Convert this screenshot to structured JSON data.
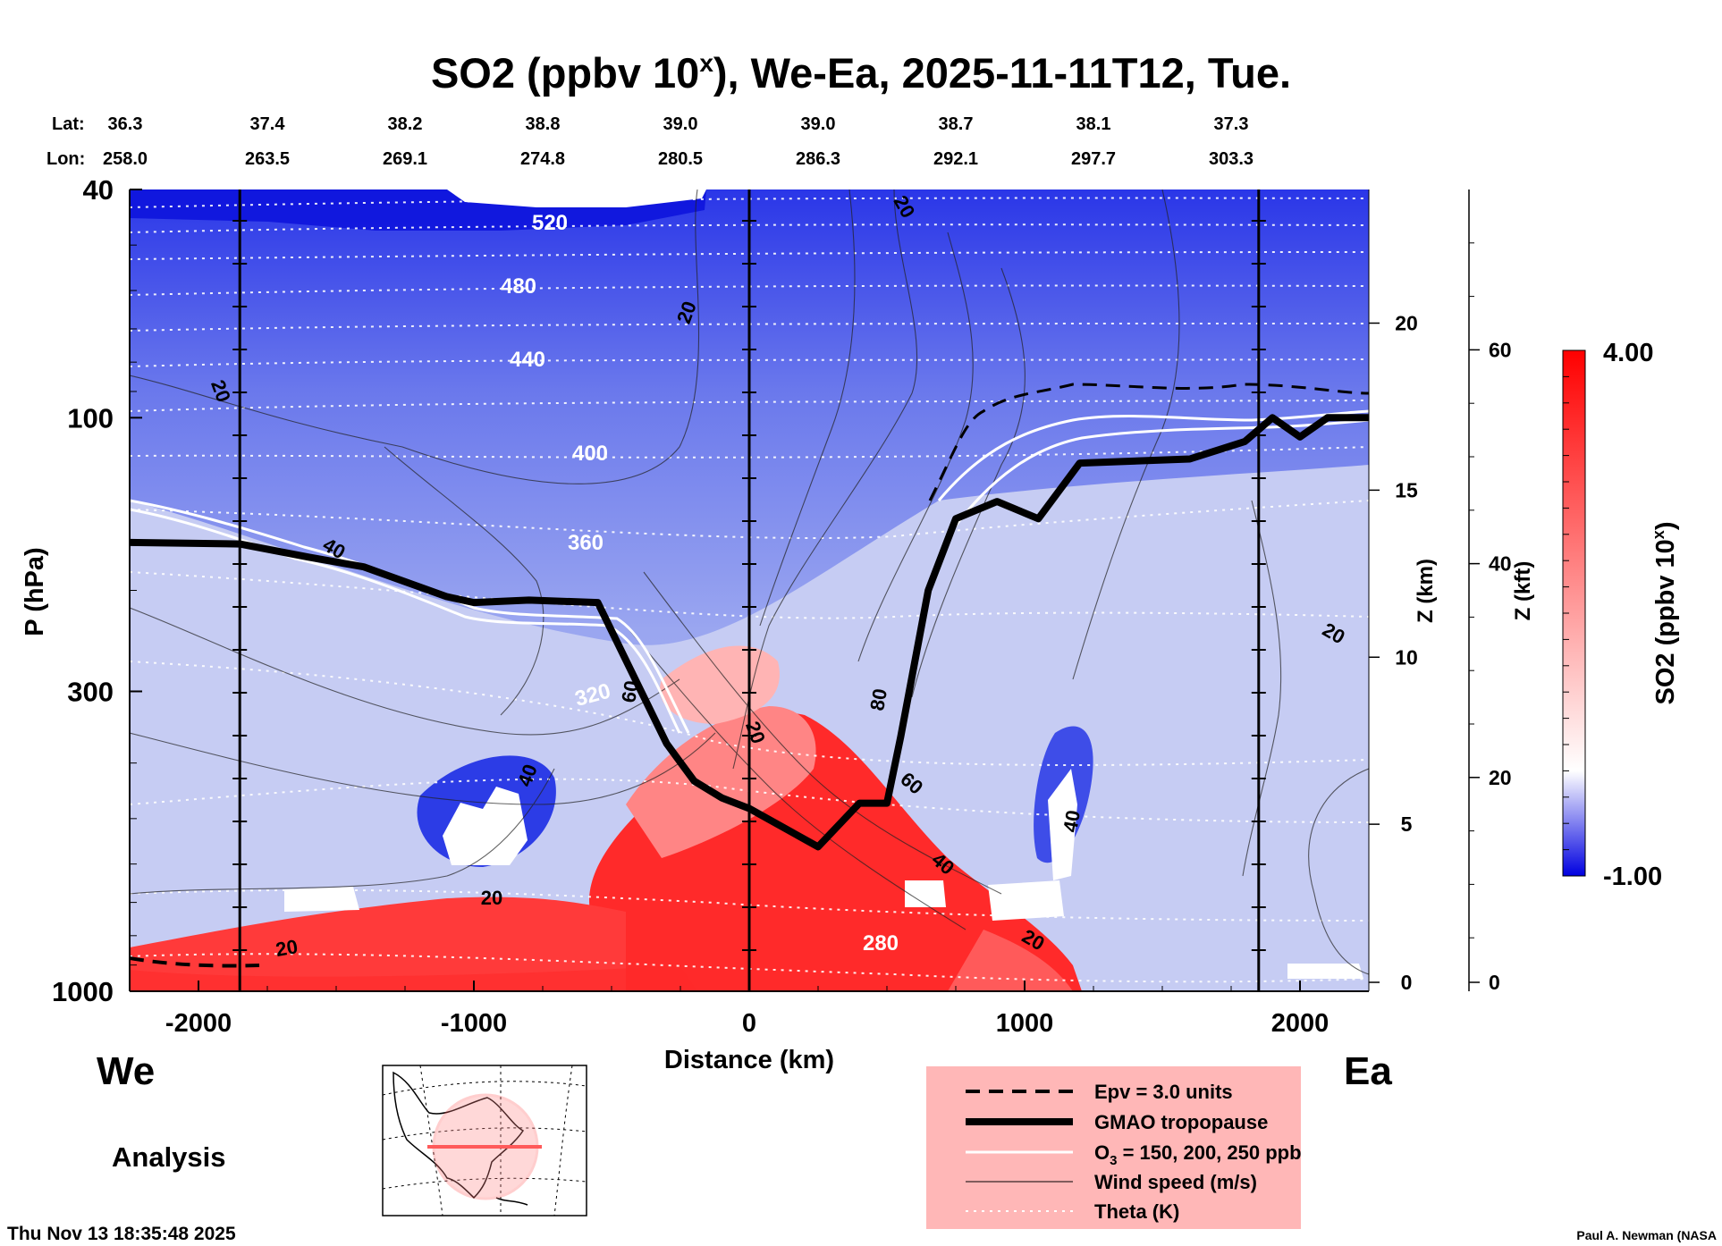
{
  "chart_data": {
    "type": "heatmap",
    "title": "SO2 (ppbv 10",
    "title_sup": "x",
    "title_rest": "), We-Ea, 2025-11-11T12, Tue.",
    "xlabel": "Distance (km)",
    "ylabel": "P (hPa)",
    "xlim": [
      -2250,
      2250
    ],
    "x_ticks": [
      -2000,
      -1000,
      0,
      1000,
      2000
    ],
    "x_tick_labels": [
      "-2000",
      "-1000",
      "0",
      "1000",
      "2000"
    ],
    "y_range_hpa": [
      40,
      1000
    ],
    "y_ticks": [
      40,
      100,
      300,
      1000
    ],
    "y_tick_labels": [
      "40",
      "100",
      "300",
      "1000"
    ],
    "z_km_label": "Z (km)",
    "z_km_ticks": [
      0,
      5,
      10,
      15,
      20
    ],
    "z_km_tick_labels": [
      "0",
      "5",
      "10",
      "15",
      "20"
    ],
    "z_kft_label": "Z (kft)",
    "z_kft_ticks": [
      0,
      20,
      40,
      60
    ],
    "z_kft_tick_labels": [
      "0",
      "20",
      "40",
      "60"
    ],
    "lat_label": "Lat:",
    "lon_label": "Lon:",
    "lat_values": [
      "36.3",
      "37.4",
      "38.2",
      "38.8",
      "39.0",
      "39.0",
      "38.7",
      "38.1",
      "37.3"
    ],
    "lon_values": [
      "258.0",
      "263.5",
      "269.1",
      "274.8",
      "280.5",
      "286.3",
      "292.1",
      "297.7",
      "303.3"
    ],
    "lat_lon_distance_km": [
      -2250,
      -1750,
      -1250,
      -750,
      -250,
      250,
      750,
      1250,
      1750
    ],
    "vertical_reference_lines_km": [
      -1850,
      0,
      1850
    ],
    "colorbar": {
      "title": "SO2 (ppbv 10",
      "title_sup": "x",
      "title_end": ")",
      "min_label": "-1.00",
      "max_label": "4.00",
      "min": -1.0,
      "max": 4.0,
      "colors": [
        "#0000e0",
        "#ffffff",
        "#ff0000"
      ]
    },
    "theta_contours_k": [
      {
        "label": "520",
        "p_hpa": 48
      },
      {
        "label": "480",
        "p_hpa": 60
      },
      {
        "label": "440",
        "p_hpa": 76
      },
      {
        "label": "400",
        "p_hpa": 104
      },
      {
        "label": "360",
        "p_hpa": 150
      },
      {
        "label": "320",
        "p_hpa": 300
      },
      {
        "label": "280",
        "p_hpa": 780
      }
    ],
    "wind_speed_labels": [
      "20",
      "20",
      "20",
      "40",
      "60",
      "20",
      "80",
      "60",
      "40",
      "40",
      "20",
      "20",
      "40",
      "20",
      "20"
    ],
    "tropopause_pressure_hpa": {
      "distance_km": [
        -2250,
        -1850,
        -1600,
        -1400,
        -1100,
        -1000,
        -800,
        -550,
        -300,
        -200,
        -100,
        0,
        250,
        400,
        500,
        550,
        650,
        750,
        900,
        1050,
        1200,
        1600,
        1800,
        1900,
        2000,
        2100,
        2250
      ],
      "p_hpa": [
        165,
        166,
        175,
        182,
        205,
        210,
        208,
        210,
        370,
        430,
        460,
        480,
        560,
        470,
        470,
        360,
        200,
        150,
        140,
        150,
        120,
        118,
        110,
        100,
        108,
        100,
        100
      ]
    }
  },
  "side_labels": {
    "west": "We",
    "east": "Ea",
    "analysis": "Analysis"
  },
  "legend": [
    {
      "style": "dashed",
      "label": "Epv = 3.0 units"
    },
    {
      "style": "thick",
      "label": "GMAO tropopause"
    },
    {
      "style": "white",
      "label": "O",
      "sub": "3",
      "rest": " = 150, 200, 250 ppb"
    },
    {
      "style": "thin",
      "label": "Wind speed (m/s)"
    },
    {
      "style": "dotted",
      "label": "Theta (K)"
    }
  ],
  "timestamp": "Thu Nov 13 18:35:48 2025",
  "credit": "Paul A. Newman (NASA"
}
